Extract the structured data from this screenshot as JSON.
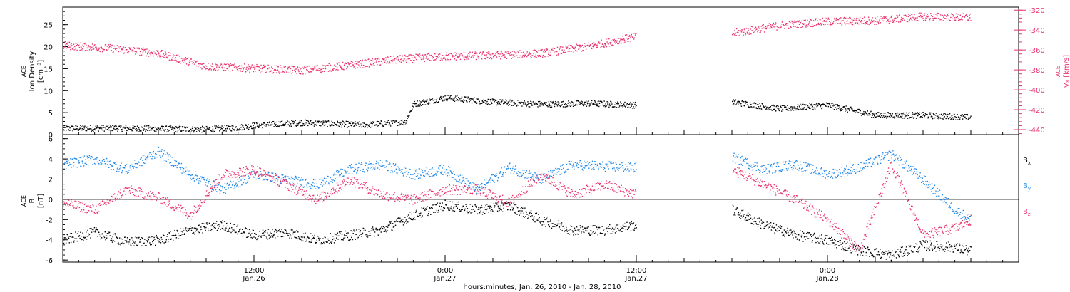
{
  "colors": {
    "black": "#000000",
    "pink": "#e8336c",
    "blue": "#1f87e8"
  },
  "bottom_labels": {
    "line": "hours:minutes, Jan. 26, 2010 - Jan. 28, 2010"
  },
  "chart_data": [
    {
      "type": "scatter",
      "name": "density-velocity-panel",
      "left_axis": {
        "label_lines": [
          "ACE",
          "Ion Density",
          "[cm⁻³]"
        ],
        "ylim": [
          0,
          29
        ],
        "ticks": [
          0,
          5,
          10,
          15,
          20,
          25
        ],
        "tick_labels": [
          "0",
          "5",
          "10",
          "15",
          "20",
          "25"
        ]
      },
      "right_axis": {
        "label_lines": [
          "ACE",
          "Vₓ [km/s]"
        ],
        "ylim": [
          -445,
          -317
        ],
        "ticks": [
          -320,
          -340,
          -360,
          -380,
          -400,
          -420,
          -440
        ],
        "tick_labels": [
          "-320",
          "-340",
          "-360",
          "-380",
          "-400",
          "-420",
          "-440"
        ]
      },
      "xlim": [
        0,
        60
      ],
      "gap": [
        36,
        42
      ],
      "series": [
        {
          "axis": "left",
          "color": "black",
          "x": [
            0,
            3,
            6,
            9,
            11,
            12,
            15,
            19,
            21.5,
            22,
            24,
            27,
            30,
            33,
            36,
            42,
            45,
            48,
            51,
            54,
            57
          ],
          "y": [
            1.5,
            1.6,
            1.4,
            1.3,
            1.7,
            2.2,
            2.8,
            2.3,
            3.0,
            7.0,
            8.5,
            7.5,
            7.0,
            7.2,
            6.8,
            7.5,
            6.0,
            6.8,
            4.5,
            4.5,
            4.0
          ]
        },
        {
          "axis": "right",
          "color": "pink",
          "x": [
            0,
            3,
            6,
            9,
            12,
            15,
            18,
            21,
            24,
            27,
            30,
            33,
            36,
            42,
            45,
            48,
            51,
            54,
            57
          ],
          "y": [
            -355,
            -358,
            -363,
            -376,
            -378,
            -380,
            -375,
            -369,
            -366,
            -365,
            -363,
            -356,
            -346,
            -343,
            -335,
            -331,
            -330,
            -326,
            -327
          ]
        }
      ]
    },
    {
      "type": "scatter",
      "name": "magnetic-field-panel",
      "left_axis": {
        "label_lines": [
          "ACE",
          "B",
          "[nT]"
        ],
        "ylim": [
          -6.2,
          6.4
        ],
        "ticks": [
          -6,
          -4,
          -2,
          0,
          2,
          4,
          6
        ],
        "tick_labels": [
          "-6",
          "-4",
          "-2",
          "0",
          "2",
          "4",
          "6"
        ]
      },
      "zero_line": true,
      "xlim": [
        0,
        60
      ],
      "gap": [
        36,
        42
      ],
      "legend": {
        "placement": "right",
        "entries": [
          {
            "label": "B",
            "subscript": "x",
            "color": "black"
          },
          {
            "label": "B",
            "subscript": "y",
            "color": "blue"
          },
          {
            "label": "B",
            "subscript": "z",
            "color": "pink"
          }
        ]
      },
      "series": [
        {
          "name": "Bx",
          "color": "black",
          "x": [
            0,
            2,
            4,
            6,
            8,
            10,
            12,
            14,
            16,
            18,
            20,
            22,
            24,
            26,
            28,
            30,
            32,
            34,
            36,
            42,
            44,
            46,
            48,
            50,
            52,
            54,
            56,
            57
          ],
          "y": [
            -4.0,
            -3.2,
            -4.2,
            -4.0,
            -3.0,
            -2.5,
            -3.5,
            -3.2,
            -4.0,
            -3.5,
            -3.0,
            -1.5,
            -0.5,
            -1.0,
            -0.6,
            -2.0,
            -3.0,
            -3.0,
            -2.5,
            -1.0,
            -2.5,
            -3.5,
            -4.0,
            -5.0,
            -5.5,
            -4.5,
            -4.7,
            -5.1
          ]
        },
        {
          "name": "By",
          "color": "blue",
          "x": [
            0,
            2,
            4,
            6,
            8,
            10,
            12,
            14,
            16,
            18,
            20,
            22,
            24,
            26,
            28,
            30,
            32,
            34,
            36,
            42,
            44,
            46,
            48,
            50,
            52,
            54,
            56,
            57
          ],
          "y": [
            3.5,
            4.0,
            3.0,
            4.8,
            2.5,
            1.0,
            2.5,
            2.0,
            1.5,
            3.0,
            3.5,
            2.5,
            3.0,
            1.0,
            3.2,
            2.0,
            3.5,
            3.3,
            3.2,
            4.2,
            3.0,
            3.5,
            2.5,
            3.2,
            4.5,
            2.0,
            -1.0,
            -2.0
          ]
        },
        {
          "name": "Bz",
          "color": "pink",
          "x": [
            0,
            2,
            4,
            6,
            8,
            10,
            12,
            14,
            16,
            18,
            20,
            22,
            24,
            26,
            28,
            30,
            32,
            34,
            36,
            42,
            44,
            46,
            48,
            50,
            52,
            54,
            56,
            57
          ],
          "y": [
            -0.3,
            -1.0,
            1.0,
            0.2,
            -1.5,
            2.5,
            3.0,
            1.5,
            0.0,
            2.0,
            0.5,
            0.0,
            1.0,
            1.0,
            -0.3,
            2.5,
            0.5,
            1.5,
            0.5,
            3.0,
            1.5,
            0.0,
            -2.0,
            -5.0,
            3.5,
            -3.5,
            -2.8,
            -2.0
          ]
        }
      ]
    }
  ],
  "x_axis": {
    "major_ticks": [
      {
        "x": 12,
        "lines": [
          "12:00",
          "Jan.26"
        ]
      },
      {
        "x": 24,
        "lines": [
          "0:00",
          "Jan.27"
        ]
      },
      {
        "x": 36,
        "lines": [
          "12:00",
          "Jan.27"
        ]
      },
      {
        "x": 48,
        "lines": [
          "0:00",
          "Jan.28"
        ]
      }
    ],
    "minor_step": 1,
    "mid_step": 3
  }
}
